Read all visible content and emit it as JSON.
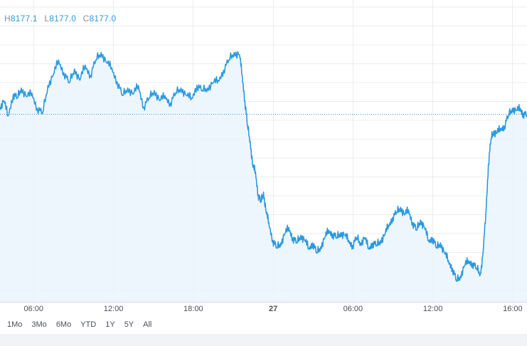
{
  "legend": {
    "high_key": "H",
    "high_value": "8177.1",
    "low_key": "L",
    "low_value": "8177.0",
    "close_key": "C",
    "close_value": "8177.0"
  },
  "range_buttons": [
    "1Mo",
    "3Mo",
    "6Mo",
    "YTD",
    "1Y",
    "5Y",
    "All"
  ],
  "colors": {
    "line": "#2b9ae0",
    "area": "#eaf4fc",
    "grid": "#e9ecf0",
    "axis_text": "#4a4f5a",
    "footer": "#f1f3f6"
  },
  "chart_data": {
    "type": "line",
    "grid": true,
    "y_unit": "px_from_top_visual",
    "x_ticks": [
      {
        "x": 2.5,
        "label": "06:00"
      },
      {
        "x": 8.5,
        "label": "12:00"
      },
      {
        "x": 14.5,
        "label": "18:00"
      },
      {
        "x": 20.5,
        "label": "27",
        "bold": true
      },
      {
        "x": 26.5,
        "label": "06:00"
      },
      {
        "x": 32.5,
        "label": "12:00"
      },
      {
        "x": 38.5,
        "label": "16:00"
      }
    ],
    "xlim": [
      0,
      39.6
    ],
    "last_price_line": true,
    "series": [
      {
        "points": [
          [
            0.0,
            0.55
          ],
          [
            0.3,
            0.5
          ],
          [
            0.6,
            0.62
          ],
          [
            1.0,
            0.45
          ],
          [
            1.3,
            0.48
          ],
          [
            1.6,
            0.4
          ],
          [
            2.0,
            0.47
          ],
          [
            2.4,
            0.44
          ],
          [
            2.8,
            0.56
          ],
          [
            3.2,
            0.6
          ],
          [
            3.6,
            0.38
          ],
          [
            4.0,
            0.3
          ],
          [
            4.4,
            0.18
          ],
          [
            4.8,
            0.28
          ],
          [
            5.2,
            0.36
          ],
          [
            5.6,
            0.25
          ],
          [
            6.0,
            0.34
          ],
          [
            6.4,
            0.22
          ],
          [
            6.8,
            0.3
          ],
          [
            7.2,
            0.18
          ],
          [
            7.6,
            0.12
          ],
          [
            8.0,
            0.2
          ],
          [
            8.4,
            0.24
          ],
          [
            8.8,
            0.35
          ],
          [
            9.2,
            0.46
          ],
          [
            9.6,
            0.4
          ],
          [
            10.0,
            0.45
          ],
          [
            10.4,
            0.38
          ],
          [
            10.8,
            0.55
          ],
          [
            11.2,
            0.48
          ],
          [
            11.6,
            0.42
          ],
          [
            12.0,
            0.5
          ],
          [
            12.4,
            0.46
          ],
          [
            12.8,
            0.52
          ],
          [
            13.2,
            0.44
          ],
          [
            13.6,
            0.4
          ],
          [
            14.0,
            0.46
          ],
          [
            14.4,
            0.48
          ],
          [
            14.8,
            0.38
          ],
          [
            15.2,
            0.42
          ],
          [
            15.6,
            0.4
          ],
          [
            16.0,
            0.36
          ],
          [
            16.4,
            0.34
          ],
          [
            16.8,
            0.26
          ],
          [
            17.2,
            0.18
          ],
          [
            17.6,
            0.12
          ],
          [
            18.0,
            0.14
          ],
          [
            18.2,
            0.3
          ],
          [
            18.4,
            0.5
          ],
          [
            18.6,
            0.7
          ],
          [
            18.8,
            0.82
          ],
          [
            19.0,
            1.02
          ],
          [
            19.2,
            1.06
          ],
          [
            19.4,
            1.24
          ],
          [
            19.6,
            1.3
          ],
          [
            19.8,
            1.22
          ],
          [
            20.0,
            1.38
          ],
          [
            20.2,
            1.46
          ],
          [
            20.5,
            1.6
          ],
          [
            20.8,
            1.66
          ],
          [
            21.1,
            1.62
          ],
          [
            21.4,
            1.55
          ],
          [
            21.7,
            1.5
          ],
          [
            22.0,
            1.58
          ],
          [
            22.3,
            1.62
          ],
          [
            22.6,
            1.56
          ],
          [
            22.9,
            1.6
          ],
          [
            23.2,
            1.66
          ],
          [
            23.5,
            1.62
          ],
          [
            23.8,
            1.7
          ],
          [
            24.1,
            1.65
          ],
          [
            24.4,
            1.58
          ],
          [
            24.7,
            1.52
          ],
          [
            25.0,
            1.55
          ],
          [
            25.3,
            1.58
          ],
          [
            25.6,
            1.54
          ],
          [
            25.9,
            1.56
          ],
          [
            26.2,
            1.6
          ],
          [
            26.5,
            1.64
          ],
          [
            26.8,
            1.58
          ],
          [
            27.1,
            1.62
          ],
          [
            27.4,
            1.58
          ],
          [
            27.7,
            1.66
          ],
          [
            28.0,
            1.62
          ],
          [
            28.3,
            1.64
          ],
          [
            28.6,
            1.6
          ],
          [
            28.9,
            1.56
          ],
          [
            29.2,
            1.48
          ],
          [
            29.5,
            1.42
          ],
          [
            29.8,
            1.38
          ],
          [
            30.1,
            1.34
          ],
          [
            30.4,
            1.4
          ],
          [
            30.7,
            1.36
          ],
          [
            31.0,
            1.46
          ],
          [
            31.3,
            1.52
          ],
          [
            31.6,
            1.44
          ],
          [
            31.9,
            1.5
          ],
          [
            32.2,
            1.6
          ],
          [
            32.5,
            1.58
          ],
          [
            32.8,
            1.66
          ],
          [
            33.1,
            1.62
          ],
          [
            33.4,
            1.7
          ],
          [
            33.7,
            1.76
          ],
          [
            34.0,
            1.82
          ],
          [
            34.3,
            1.92
          ],
          [
            34.6,
            1.88
          ],
          [
            34.9,
            1.8
          ],
          [
            35.2,
            1.76
          ],
          [
            35.5,
            1.78
          ],
          [
            35.8,
            1.82
          ],
          [
            36.1,
            1.86
          ],
          [
            36.3,
            1.7
          ],
          [
            36.5,
            1.4
          ],
          [
            36.7,
            1.0
          ],
          [
            36.9,
            0.8
          ],
          [
            37.1,
            0.74
          ],
          [
            37.3,
            0.76
          ],
          [
            37.6,
            0.72
          ],
          [
            37.9,
            0.7
          ],
          [
            38.2,
            0.62
          ],
          [
            38.5,
            0.56
          ],
          [
            38.8,
            0.58
          ],
          [
            39.1,
            0.56
          ],
          [
            39.3,
            0.6
          ],
          [
            39.6,
            0.62
          ]
        ]
      }
    ]
  }
}
